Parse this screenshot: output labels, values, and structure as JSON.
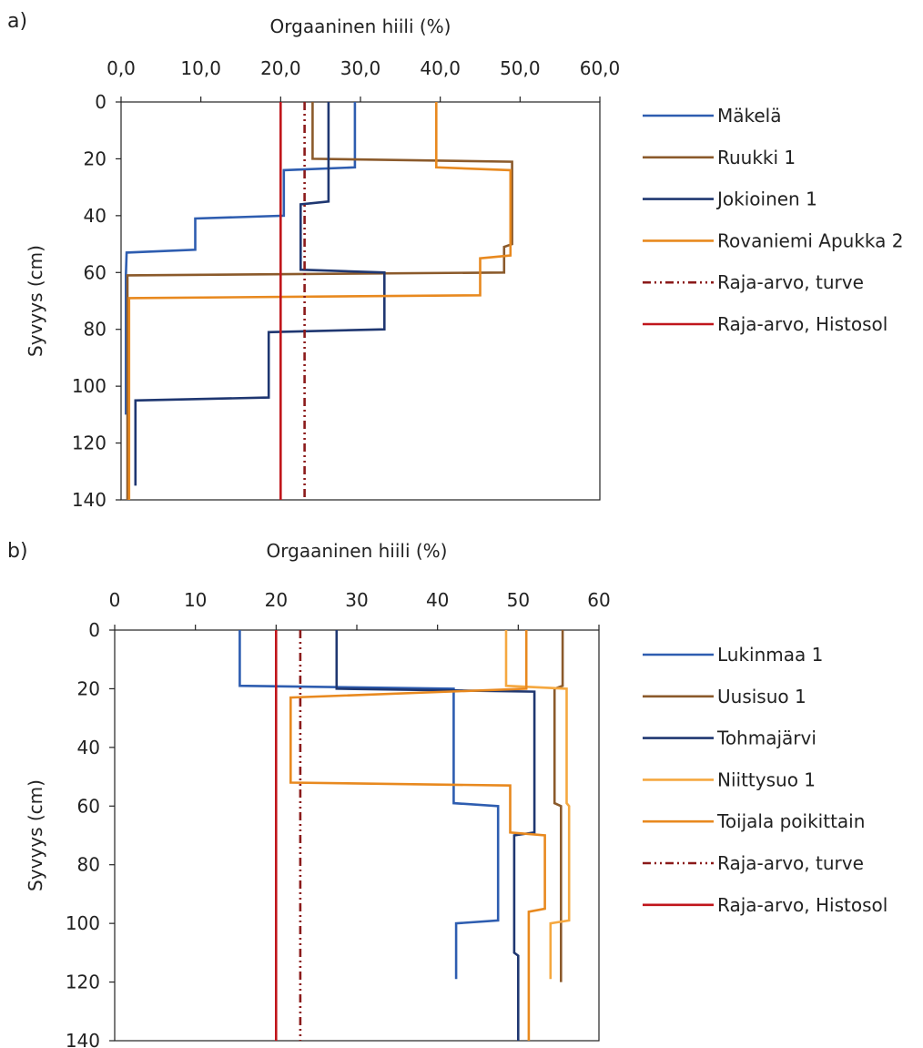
{
  "chart_data": [
    {
      "panel_label": "a)",
      "type": "line",
      "xlabel": "Orgaaninen hiili (%)",
      "ylabel": "Syvyys (cm)",
      "xlim": [
        0,
        60
      ],
      "ylim": [
        0,
        140
      ],
      "y_inverted": true,
      "x_ticks": [
        0,
        10,
        20,
        30,
        40,
        50,
        60
      ],
      "x_tick_labels": [
        "0,0",
        "10,0",
        "20,0",
        "30,0",
        "40,0",
        "50,0",
        "60,0"
      ],
      "y_ticks": [
        0,
        20,
        40,
        60,
        80,
        100,
        120,
        140
      ],
      "y_tick_labels": [
        "0",
        "20",
        "40",
        "60",
        "80",
        "100",
        "120",
        "140"
      ],
      "grid": false,
      "legend": "right",
      "series": [
        {
          "name": "Mäkelä",
          "color": "#2E5DB0",
          "dash": "solid",
          "points": [
            [
              29.3,
              0
            ],
            [
              29.3,
              23
            ],
            [
              20.4,
              24
            ],
            [
              20.4,
              40
            ],
            [
              9.3,
              41
            ],
            [
              9.3,
              52
            ],
            [
              0.7,
              53
            ],
            [
              0.6,
              61
            ],
            [
              0.6,
              110
            ]
          ]
        },
        {
          "name": "Ruukki 1",
          "color": "#8B5A2B",
          "dash": "solid",
          "points": [
            [
              24.0,
              0
            ],
            [
              24.0,
              20
            ],
            [
              49.0,
              21
            ],
            [
              49.0,
              50
            ],
            [
              48.0,
              51
            ],
            [
              48.0,
              60
            ],
            [
              0.8,
              61
            ],
            [
              0.8,
              140
            ]
          ]
        },
        {
          "name": "Jokioinen 1",
          "color": "#1F3771",
          "dash": "solid",
          "points": [
            [
              26.0,
              0
            ],
            [
              26.0,
              35
            ],
            [
              22.5,
              36
            ],
            [
              22.5,
              59
            ],
            [
              33.0,
              60
            ],
            [
              33.0,
              80
            ],
            [
              18.5,
              81
            ],
            [
              18.5,
              104
            ],
            [
              1.8,
              105
            ],
            [
              1.8,
              135
            ]
          ]
        },
        {
          "name": "Rovaniemi Apukka 2",
          "color": "#E8891F",
          "dash": "solid",
          "points": [
            [
              39.5,
              0
            ],
            [
              39.5,
              23
            ],
            [
              48.8,
              24
            ],
            [
              48.8,
              54
            ],
            [
              45.0,
              55
            ],
            [
              45.0,
              68
            ],
            [
              1.0,
              69
            ],
            [
              1.0,
              140
            ]
          ]
        },
        {
          "name": "Raja-arvo, turve",
          "color": "#8B1A1A",
          "dash": "dashdotdot",
          "points": [
            [
              23.0,
              0
            ],
            [
              23.0,
              140
            ]
          ]
        },
        {
          "name": "Raja-arvo, Histosol",
          "color": "#C0161C",
          "dash": "solid",
          "points": [
            [
              20.0,
              0
            ],
            [
              20.0,
              140
            ]
          ]
        }
      ]
    },
    {
      "panel_label": "b)",
      "type": "line",
      "xlabel": "Orgaaninen hiili (%)",
      "ylabel": "Syvyys (cm)",
      "xlim": [
        0,
        60
      ],
      "ylim": [
        0,
        140
      ],
      "y_inverted": true,
      "x_ticks": [
        0,
        10,
        20,
        30,
        40,
        50,
        60
      ],
      "x_tick_labels": [
        "0",
        "10",
        "20",
        "30",
        "40",
        "50",
        "60"
      ],
      "y_ticks": [
        0,
        20,
        40,
        60,
        80,
        100,
        120,
        140
      ],
      "y_tick_labels": [
        "0",
        "20",
        "40",
        "60",
        "80",
        "100",
        "120",
        "140"
      ],
      "grid": false,
      "legend": "right",
      "series": [
        {
          "name": "Lukinmaa 1",
          "color": "#2E5DB0",
          "dash": "solid",
          "points": [
            [
              15.5,
              0
            ],
            [
              15.5,
              19
            ],
            [
              42.0,
              20
            ],
            [
              42.0,
              59
            ],
            [
              47.5,
              60
            ],
            [
              47.5,
              99
            ],
            [
              42.3,
              100
            ],
            [
              42.3,
              119
            ]
          ]
        },
        {
          "name": "Uusisuo 1",
          "color": "#8B5A2B",
          "dash": "solid",
          "points": [
            [
              55.5,
              0
            ],
            [
              55.5,
              19
            ],
            [
              54.5,
              20
            ],
            [
              54.5,
              59
            ],
            [
              55.3,
              60
            ],
            [
              55.3,
              120
            ]
          ]
        },
        {
          "name": "Tohmajärvi",
          "color": "#1F3771",
          "dash": "solid",
          "points": [
            [
              27.5,
              0
            ],
            [
              27.5,
              20
            ],
            [
              52.0,
              21
            ],
            [
              52.0,
              69
            ],
            [
              49.5,
              70
            ],
            [
              49.5,
              110
            ],
            [
              50.0,
              111
            ],
            [
              50.0,
              140
            ]
          ]
        },
        {
          "name": "Niittysuo 1",
          "color": "#F5A840",
          "dash": "solid",
          "points": [
            [
              48.5,
              0
            ],
            [
              48.5,
              19
            ],
            [
              56.0,
              20
            ],
            [
              56.0,
              59
            ],
            [
              56.3,
              60
            ],
            [
              56.3,
              99
            ],
            [
              54.0,
              100
            ],
            [
              54.0,
              119
            ]
          ]
        },
        {
          "name": "Toijala poikittain",
          "color": "#E8891F",
          "dash": "solid",
          "points": [
            [
              51.0,
              0
            ],
            [
              51.0,
              20
            ],
            [
              21.8,
              23
            ],
            [
              21.8,
              52
            ],
            [
              49.0,
              53
            ],
            [
              49.0,
              69
            ],
            [
              53.3,
              70
            ],
            [
              53.3,
              95
            ],
            [
              51.3,
              96
            ],
            [
              51.3,
              140
            ]
          ]
        },
        {
          "name": "Raja-arvo, turve",
          "color": "#8B1A1A",
          "dash": "dashdotdot",
          "points": [
            [
              23.0,
              0
            ],
            [
              23.0,
              140
            ]
          ]
        },
        {
          "name": "Raja-arvo, Histosol",
          "color": "#C0161C",
          "dash": "solid",
          "points": [
            [
              20.0,
              0
            ],
            [
              20.0,
              140
            ]
          ]
        }
      ]
    }
  ]
}
